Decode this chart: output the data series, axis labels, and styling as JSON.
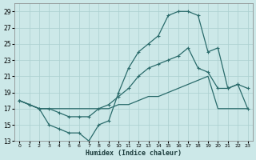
{
  "xlabel": "Humidex (Indice chaleur)",
  "bg_color": "#cce8e8",
  "grid_color": "#aacfcf",
  "line_color": "#2a6b6b",
  "xlim": [
    -0.5,
    23.5
  ],
  "ylim": [
    13,
    30
  ],
  "xticks": [
    0,
    1,
    2,
    3,
    4,
    5,
    6,
    7,
    8,
    9,
    10,
    11,
    12,
    13,
    14,
    15,
    16,
    17,
    18,
    19,
    20,
    21,
    22,
    23
  ],
  "yticks": [
    13,
    15,
    17,
    19,
    21,
    23,
    25,
    27,
    29
  ],
  "curve_peak_x": [
    0,
    1,
    2,
    3,
    4,
    5,
    6,
    7,
    8,
    9,
    10,
    11,
    12,
    13,
    14,
    15,
    16,
    17,
    18,
    19,
    20,
    21,
    22,
    23
  ],
  "curve_peak_y": [
    18,
    17.5,
    17,
    15,
    14.5,
    14,
    14,
    13,
    15,
    15.5,
    19,
    22,
    24,
    25,
    26,
    28.5,
    29,
    29,
    28.5,
    24,
    24.5,
    19.5,
    20,
    19.5
  ],
  "curve_mid_x": [
    0,
    1,
    2,
    3,
    4,
    5,
    6,
    7,
    8,
    9,
    10,
    11,
    12,
    13,
    14,
    15,
    16,
    17,
    18,
    19,
    20,
    21,
    22,
    23
  ],
  "curve_mid_y": [
    18,
    17.5,
    17,
    17,
    16.5,
    16,
    16,
    16,
    17,
    17.5,
    18.5,
    19.5,
    21,
    22,
    22.5,
    23,
    23.5,
    24.5,
    22,
    21.5,
    19.5,
    19.5,
    20,
    17
  ],
  "curve_low_x": [
    0,
    1,
    2,
    3,
    4,
    5,
    6,
    7,
    8,
    9,
    10,
    11,
    12,
    13,
    14,
    15,
    16,
    17,
    18,
    19,
    20,
    21,
    22,
    23
  ],
  "curve_low_y": [
    18,
    17.5,
    17,
    17,
    17,
    17,
    17,
    17,
    17,
    17,
    17.5,
    17.5,
    18,
    18.5,
    18.5,
    19,
    19.5,
    20,
    20.5,
    21,
    17,
    17,
    17,
    17
  ]
}
